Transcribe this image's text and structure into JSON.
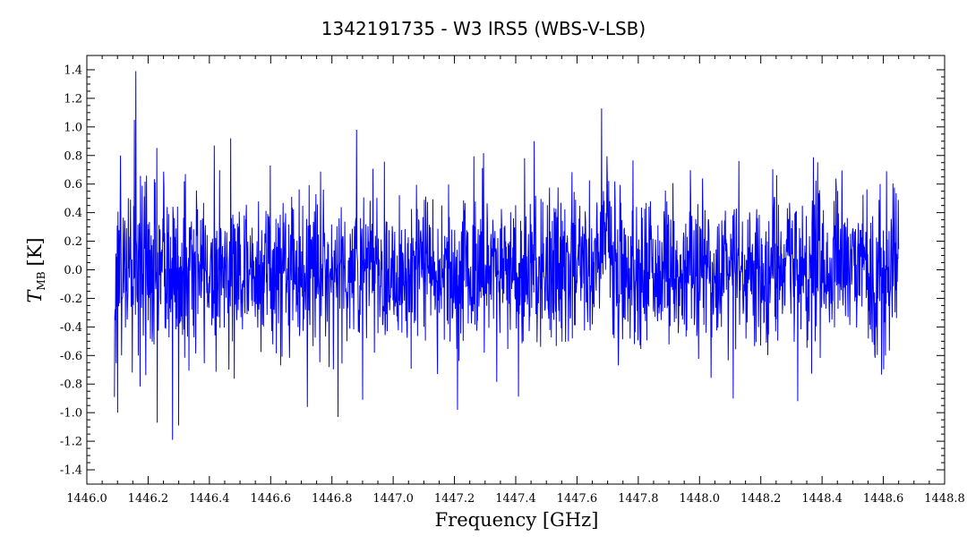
{
  "chart_data": {
    "type": "line",
    "title": "1342191735 - W3 IRS5 (WBS-V-LSB)",
    "xlabel": "Frequency [GHz]",
    "ylabel": {
      "symbol": "T",
      "subscript": "MB",
      "unit": "[K]"
    },
    "xlim": [
      1446.0,
      1448.8
    ],
    "ylim": [
      -1.5,
      1.5
    ],
    "x_ticks": [
      "1446.0",
      "1446.2",
      "1446.4",
      "1446.6",
      "1446.8",
      "1447.0",
      "1447.2",
      "1447.4",
      "1447.6",
      "1447.8",
      "1448.0",
      "1448.2",
      "1448.4",
      "1448.6",
      "1448.8"
    ],
    "y_ticks": [
      "-1.4",
      "-1.2",
      "-1.0",
      "-0.8",
      "-0.6",
      "-0.4",
      "-0.2",
      "0.0",
      "0.2",
      "0.4",
      "0.6",
      "0.8",
      "1.0",
      "1.2",
      "1.4"
    ],
    "line_color": "#0000ff",
    "grid": false,
    "series": [
      {
        "x_start": 1446.09,
        "x_end": 1448.65,
        "noise_rms": 0.27,
        "features": [
          {
            "x": 1446.09,
            "value": -0.89,
            "kind": "spike"
          },
          {
            "x": 1446.1,
            "value": -1.0,
            "kind": "spike"
          },
          {
            "x": 1446.11,
            "value": 0.8,
            "kind": "spike"
          },
          {
            "x": 1446.16,
            "value": 1.39,
            "kind": "spike"
          },
          {
            "x": 1446.155,
            "value": 1.05,
            "kind": "spike"
          },
          {
            "x": 1446.23,
            "value": -1.07,
            "kind": "spike"
          },
          {
            "x": 1446.28,
            "value": -1.19,
            "kind": "spike"
          },
          {
            "x": 1446.3,
            "value": -1.09,
            "kind": "spike"
          },
          {
            "x": 1446.47,
            "value": 0.92,
            "kind": "spike"
          },
          {
            "x": 1446.72,
            "value": -0.96,
            "kind": "spike"
          },
          {
            "x": 1446.82,
            "value": -1.03,
            "kind": "spike"
          },
          {
            "x": 1446.88,
            "value": 0.98,
            "kind": "spike"
          },
          {
            "x": 1446.9,
            "value": -0.91,
            "kind": "spike"
          },
          {
            "x": 1447.21,
            "value": -0.98,
            "kind": "spike"
          },
          {
            "x": 1447.46,
            "value": 0.9,
            "kind": "spike"
          },
          {
            "x": 1447.68,
            "value": 1.13,
            "kind": "spike"
          },
          {
            "x": 1448.11,
            "value": -0.9,
            "kind": "spike"
          },
          {
            "x": 1448.32,
            "value": -0.92,
            "kind": "spike"
          },
          {
            "x": 1448.61,
            "value": 0.69,
            "kind": "spike"
          },
          {
            "x": 1447.69,
            "value": 0.45,
            "kind": "line_center",
            "width_ghz": 0.012
          }
        ]
      }
    ]
  }
}
